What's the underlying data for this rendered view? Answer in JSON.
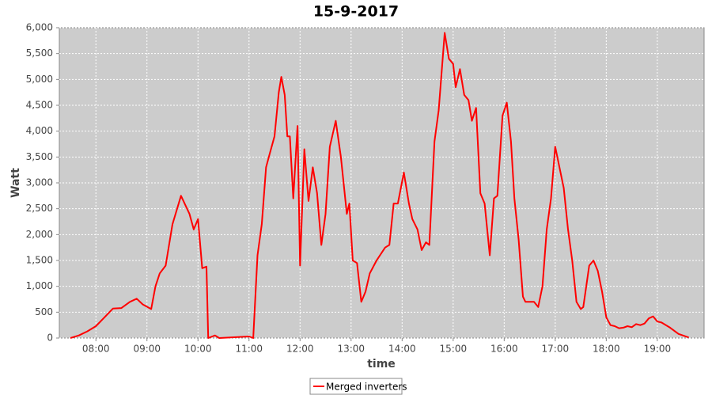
{
  "chart_data": {
    "type": "line",
    "title": "15-9-2017",
    "x_label": "time",
    "y_label": "Watt",
    "x": [
      "07:30",
      "07:40",
      "07:50",
      "08:00",
      "08:10",
      "08:20",
      "08:30",
      "08:40",
      "08:48",
      "08:55",
      "09:05",
      "09:10",
      "09:15",
      "09:22",
      "09:30",
      "09:40",
      "09:50",
      "09:55",
      "10:00",
      "10:05",
      "10:10",
      "10:12",
      "10:20",
      "10:25",
      "11:00",
      "11:05",
      "11:10",
      "11:15",
      "11:20",
      "11:25",
      "11:30",
      "11:35",
      "11:38",
      "11:42",
      "11:45",
      "11:48",
      "11:52",
      "11:57",
      "12:00",
      "12:05",
      "12:10",
      "12:15",
      "12:20",
      "12:25",
      "12:30",
      "12:35",
      "12:42",
      "12:48",
      "12:55",
      "12:58",
      "13:02",
      "13:07",
      "13:12",
      "13:17",
      "13:22",
      "13:30",
      "13:40",
      "13:45",
      "13:50",
      "13:55",
      "14:02",
      "14:08",
      "14:12",
      "14:18",
      "14:23",
      "14:28",
      "14:32",
      "14:38",
      "14:43",
      "14:50",
      "14:55",
      "15:00",
      "15:03",
      "15:08",
      "15:13",
      "15:18",
      "15:22",
      "15:27",
      "15:32",
      "15:37",
      "15:43",
      "15:48",
      "15:52",
      "15:58",
      "16:03",
      "16:08",
      "16:12",
      "16:17",
      "16:22",
      "16:25",
      "16:35",
      "16:40",
      "16:45",
      "16:50",
      "16:55",
      "17:00",
      "17:05",
      "17:10",
      "17:15",
      "17:20",
      "17:25",
      "17:30",
      "17:33",
      "17:40",
      "17:45",
      "17:50",
      "17:55",
      "18:00",
      "18:05",
      "18:10",
      "18:15",
      "18:20",
      "18:25",
      "18:30",
      "18:35",
      "18:40",
      "18:45",
      "18:50",
      "18:55",
      "19:00",
      "19:05",
      "19:15",
      "19:25",
      "19:32",
      "19:37"
    ],
    "series": [
      {
        "name": "Merged inverters",
        "color": "#ff0000",
        "values": [
          0,
          50,
          130,
          230,
          400,
          570,
          580,
          700,
          760,
          650,
          560,
          1000,
          1250,
          1400,
          2200,
          2750,
          2400,
          2100,
          2300,
          1350,
          1380,
          0,
          50,
          0,
          30,
          0,
          1600,
          2200,
          3300,
          3600,
          3900,
          4750,
          5050,
          4700,
          3900,
          3900,
          2700,
          4100,
          1400,
          3650,
          2650,
          3300,
          2800,
          1800,
          2400,
          3700,
          4200,
          3500,
          2400,
          2600,
          1500,
          1450,
          700,
          900,
          1250,
          1500,
          1750,
          1800,
          2600,
          2600,
          3200,
          2600,
          2300,
          2100,
          1700,
          1850,
          1800,
          3800,
          4400,
          5900,
          5400,
          5300,
          4850,
          5200,
          4700,
          4600,
          4200,
          4450,
          2800,
          2600,
          1600,
          2700,
          2750,
          4300,
          4550,
          3800,
          2700,
          1900,
          800,
          700,
          700,
          600,
          1000,
          2100,
          2700,
          3700,
          3300,
          2900,
          2100,
          1500,
          700,
          560,
          600,
          1400,
          1500,
          1300,
          900,
          400,
          250,
          230,
          190,
          200,
          230,
          210,
          270,
          250,
          280,
          380,
          420,
          320,
          300,
          200,
          80,
          40,
          10
        ]
      }
    ],
    "xlim": [
      "07:17",
      "19:55"
    ],
    "xticks": [
      "08:00",
      "09:00",
      "10:00",
      "11:00",
      "12:00",
      "13:00",
      "14:00",
      "15:00",
      "16:00",
      "17:00",
      "18:00",
      "19:00"
    ],
    "ylim": [
      0,
      6000
    ],
    "yticks": [
      0,
      500,
      {
        "value": 1000,
        "label": "1,000"
      },
      {
        "value": 1500,
        "label": "1,500"
      },
      {
        "value": 2000,
        "label": "2,000"
      },
      {
        "value": 2500,
        "label": "2,500"
      },
      {
        "value": 3000,
        "label": "3,000"
      },
      {
        "value": 3500,
        "label": "3,500"
      },
      {
        "value": 4000,
        "label": "4,000"
      },
      {
        "value": 4500,
        "label": "4,500"
      },
      {
        "value": 5000,
        "label": "5,000"
      },
      {
        "value": 5500,
        "label": "5,500"
      },
      {
        "value": 6000,
        "label": "6,000"
      }
    ],
    "grid": true
  }
}
